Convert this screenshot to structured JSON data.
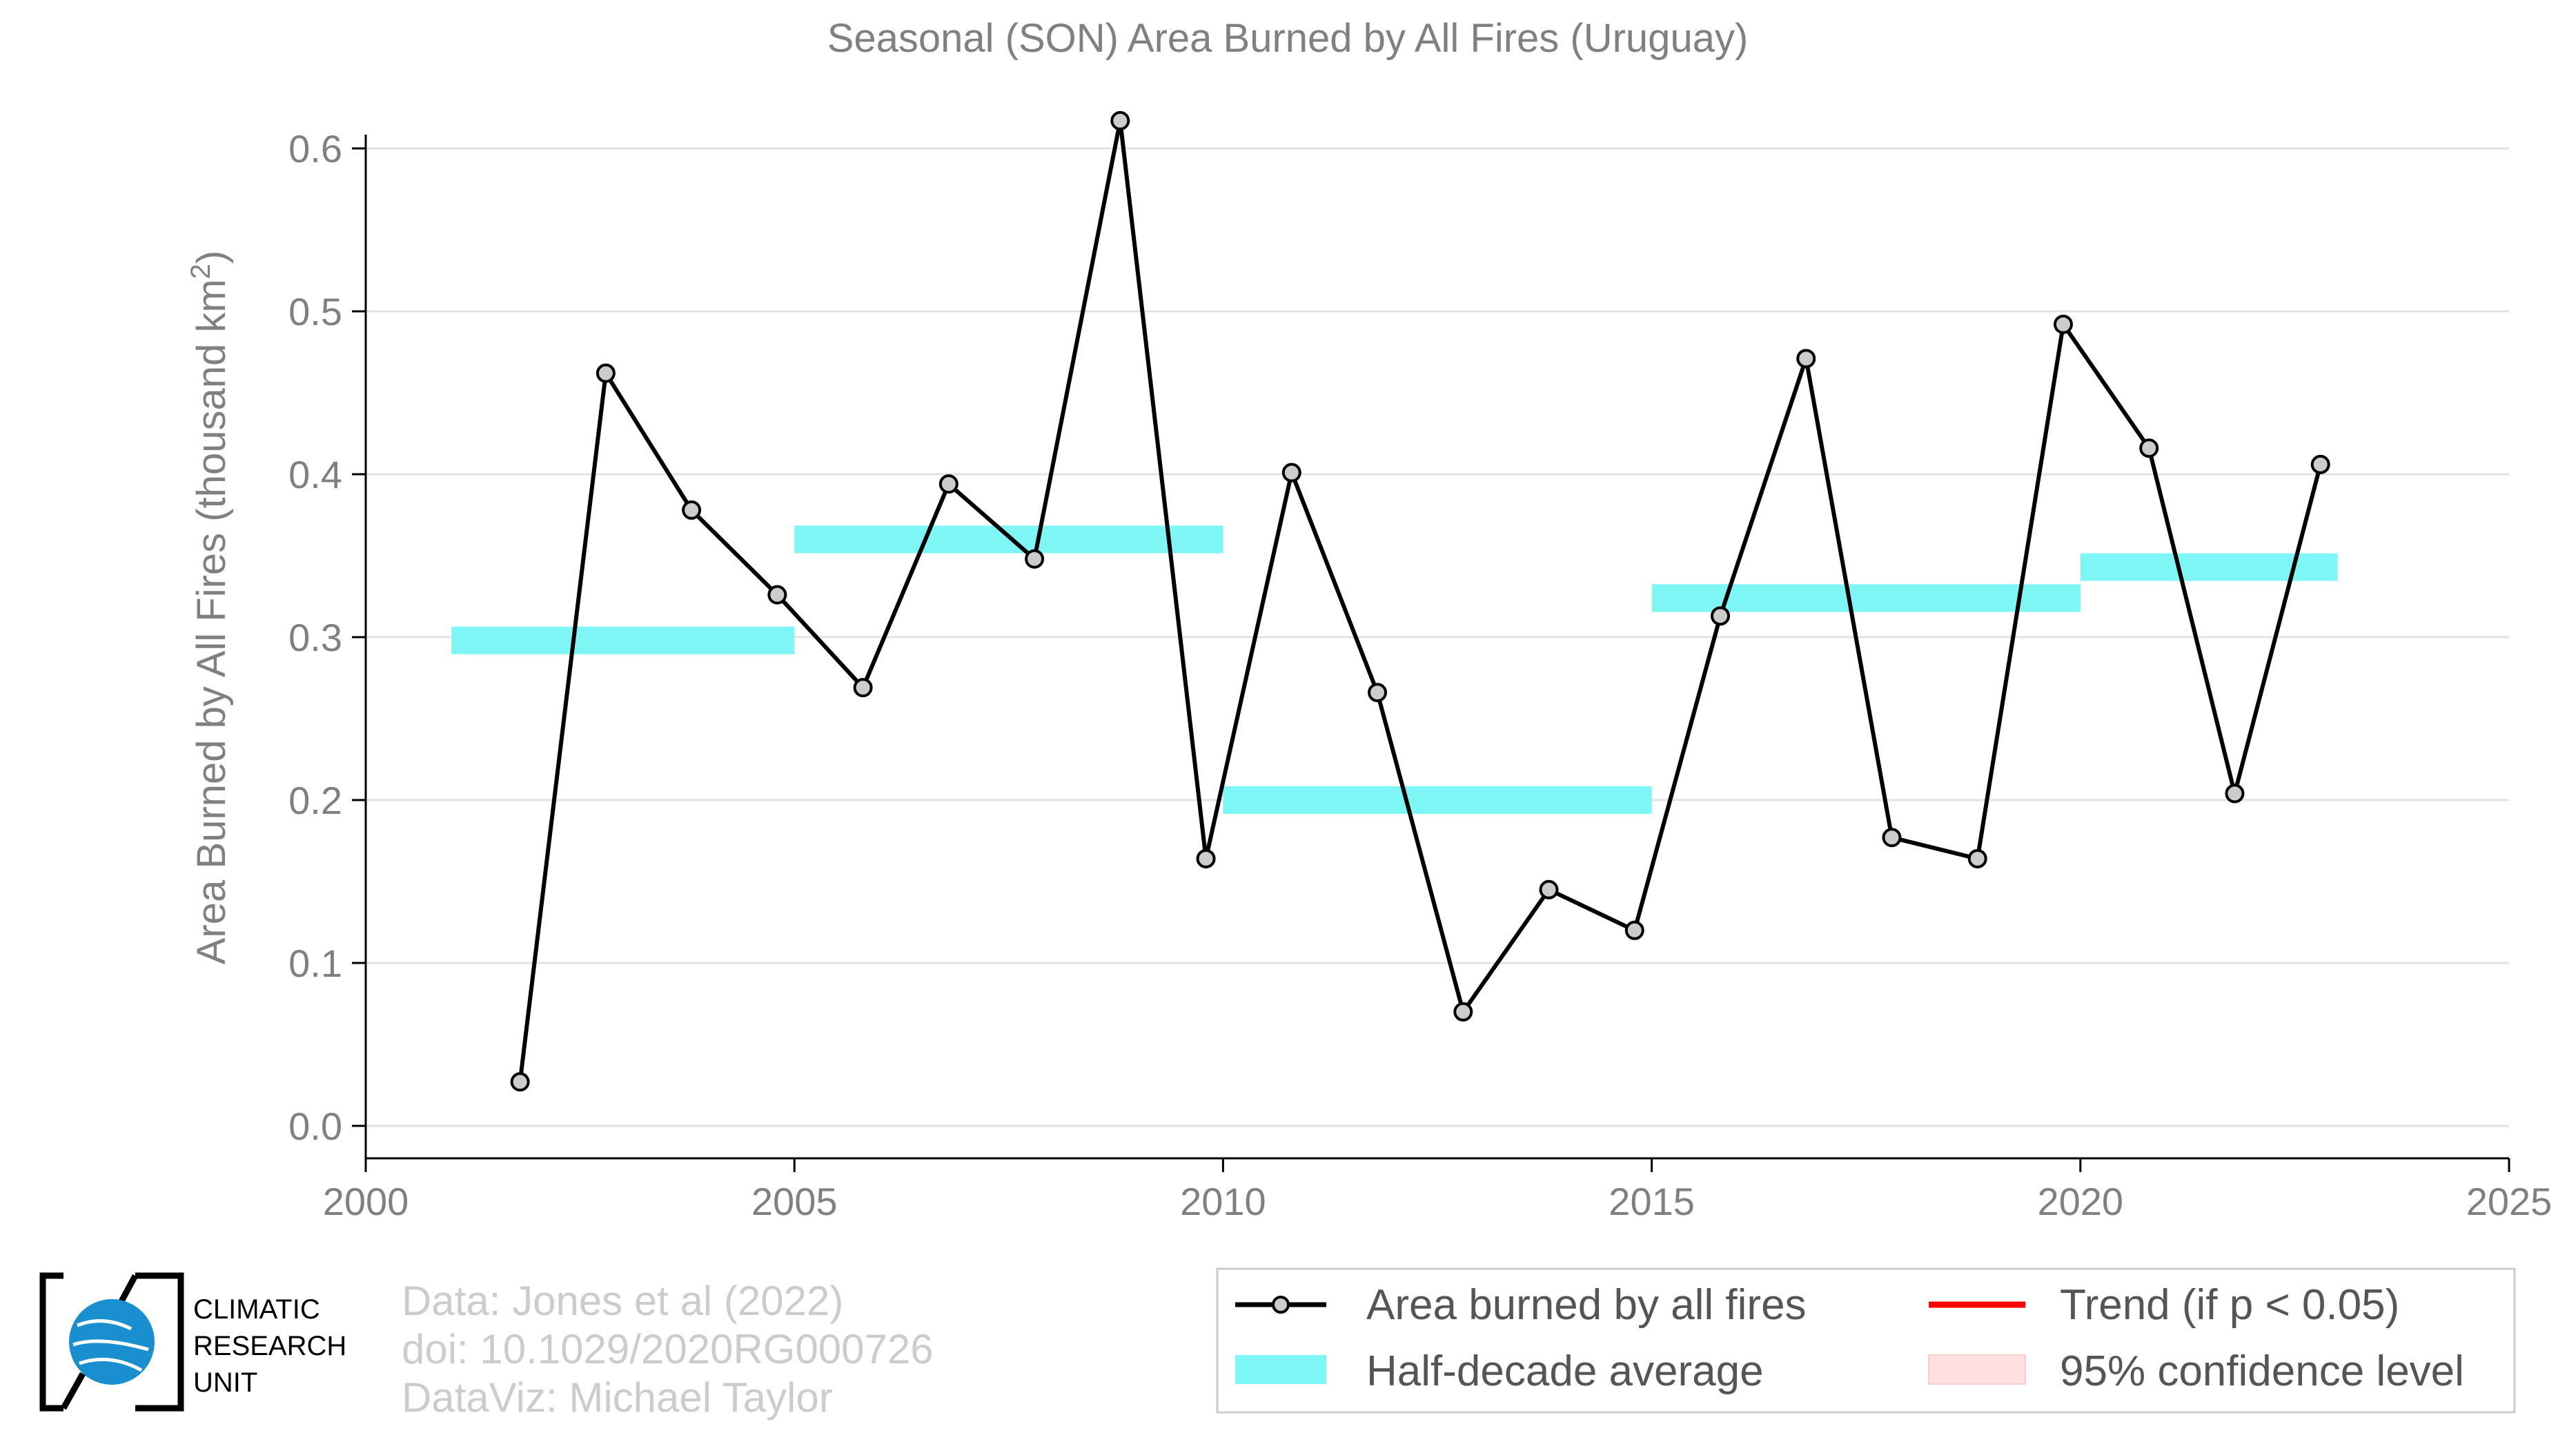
{
  "chart_data": {
    "type": "line",
    "title": "Seasonal (SON) Area Burned by All Fires (Uruguay)",
    "xlabel": "",
    "ylabel": "Area Burned by All Fires (thousand km²)",
    "xlim": [
      2000,
      2025
    ],
    "ylim": [
      0.0,
      0.6
    ],
    "x_ticks": [
      2000,
      2005,
      2010,
      2015,
      2020,
      2025
    ],
    "y_ticks": [
      "0.0",
      "0.1",
      "0.2",
      "0.3",
      "0.4",
      "0.5",
      "0.6"
    ],
    "grid": "horizontal",
    "legend_position": "bottom-right",
    "series": [
      {
        "name": "Area burned by all fires",
        "color": "#000000",
        "marker_fill": "#cccccc",
        "x": [
          2001.8,
          2002.8,
          2003.8,
          2004.8,
          2005.8,
          2006.8,
          2007.8,
          2008.8,
          2009.8,
          2010.8,
          2011.8,
          2012.8,
          2013.8,
          2014.8,
          2015.8,
          2016.8,
          2017.8,
          2018.8,
          2019.8,
          2020.8,
          2021.8,
          2022.8
        ],
        "y": [
          0.027,
          0.462,
          0.378,
          0.326,
          0.269,
          0.394,
          0.348,
          0.617,
          0.164,
          0.401,
          0.266,
          0.07,
          0.145,
          0.12,
          0.313,
          0.471,
          0.177,
          0.164,
          0.492,
          0.416,
          0.204,
          0.406
        ]
      }
    ],
    "half_decade_averages": {
      "name": "Half-decade average",
      "color": "#7ff6f6",
      "segments": [
        {
          "x_start": 2001,
          "x_end": 2005,
          "value": 0.298
        },
        {
          "x_start": 2005,
          "x_end": 2010,
          "value": 0.36
        },
        {
          "x_start": 2010,
          "x_end": 2015,
          "value": 0.2
        },
        {
          "x_start": 2015,
          "x_end": 2020,
          "value": 0.324
        },
        {
          "x_start": 2020,
          "x_end": 2023,
          "value": 0.343
        }
      ]
    },
    "legend": {
      "line": "Area burned by all fires",
      "band": "Half-decade average",
      "trend": "Trend (if p < 0.05)",
      "confidence": "95% confidence level",
      "trend_color": "#ff0000",
      "confidence_color": "#ffe0e0"
    }
  },
  "credits": {
    "line1": "Data: Jones et al (2022)",
    "line2": "doi: 10.1029/2020RG000726",
    "line3": "DataViz: Michael Taylor"
  },
  "logo": {
    "line1": "CLIMATIC",
    "line2": "RESEARCH",
    "line3": "UNIT",
    "color": "#1a8fd0"
  }
}
